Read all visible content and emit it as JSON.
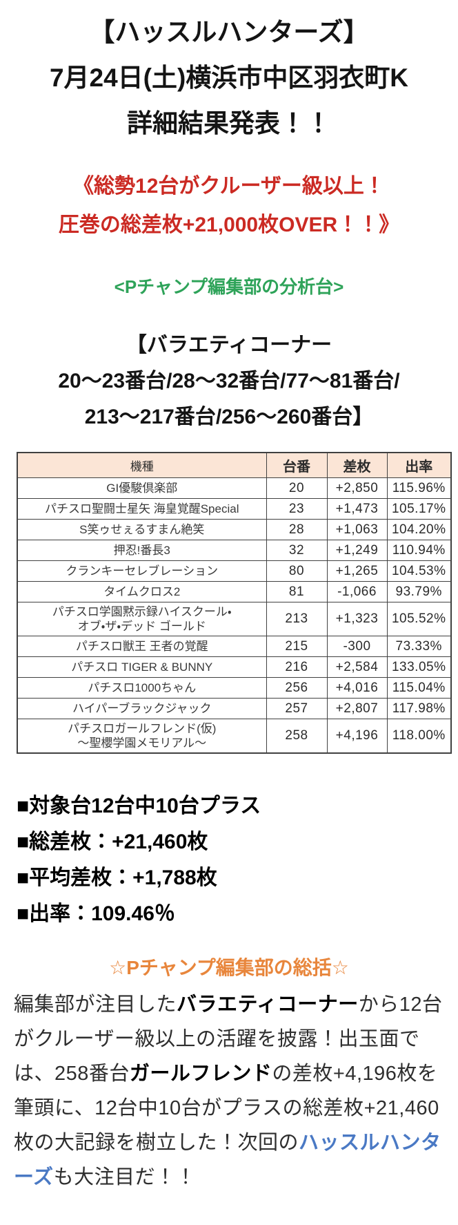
{
  "theme": {
    "red": "#cb2a23",
    "green": "#2ea359",
    "orange": "#e8863c",
    "blue": "#4a79c4",
    "header_bg": "#fbe5d6",
    "border": "#404040"
  },
  "title": {
    "lines": [
      "【ハッスルハンターズ】",
      "7月24日(土)横浜市中区羽衣町K",
      "詳細結果発表！！"
    ]
  },
  "highlight": {
    "lines": [
      "《総勢12台がクルーザー級以上！",
      "圧巻の総差枚+21,000枚OVER！！》"
    ]
  },
  "analysis_tag": {
    "text": "<Pチャンプ編集部の分析台>"
  },
  "corner_heading": {
    "lines": [
      "【バラエティコーナー",
      "20〜23番台/28〜32番台/77〜81番台/",
      "213〜217番台/256〜260番台】"
    ]
  },
  "results_table": {
    "columns": {
      "machine": "機種",
      "unit": "台番",
      "diff": "差枚",
      "rate": "出率"
    },
    "rows": [
      {
        "machine": "GI優駿倶楽部",
        "unit": "20",
        "diff": "+2,850",
        "rate": "115.96%"
      },
      {
        "machine": "パチスロ聖闘士星矢 海皇覚醒Special",
        "unit": "23",
        "diff": "+1,473",
        "rate": "105.17%"
      },
      {
        "machine": "S笑ゥせぇるすまん絶笑",
        "unit": "28",
        "diff": "+1,063",
        "rate": "104.20%"
      },
      {
        "machine": "押忍!番長3",
        "unit": "32",
        "diff": "+1,249",
        "rate": "110.94%"
      },
      {
        "machine": "クランキーセレブレーション",
        "unit": "80",
        "diff": "+1,265",
        "rate": "104.53%"
      },
      {
        "machine": "タイムクロス2",
        "unit": "81",
        "diff": "-1,066",
        "rate": "93.79%"
      },
      {
        "machine": "パチスロ学園黙示録ハイスクール・\nオブ・ザ・デッド ゴールド",
        "unit": "213",
        "diff": "+1,323",
        "rate": "105.52%"
      },
      {
        "machine": "パチスロ獣王 王者の覚醒",
        "unit": "215",
        "diff": "-300",
        "rate": "73.33%"
      },
      {
        "machine": "パチスロ TIGER & BUNNY",
        "unit": "216",
        "diff": "+2,584",
        "rate": "133.05%"
      },
      {
        "machine": "パチスロ1000ちゃん",
        "unit": "256",
        "diff": "+4,016",
        "rate": "115.04%"
      },
      {
        "machine": "ハイパーブラックジャック",
        "unit": "257",
        "diff": "+2,807",
        "rate": "117.98%"
      },
      {
        "machine": "パチスロガールフレンド(仮)\n〜聖櫻学園メモリアル〜",
        "unit": "258",
        "diff": "+4,196",
        "rate": "118.00%"
      }
    ]
  },
  "stats": {
    "items": [
      "■対象台12台中10台プラス",
      "■総差枚：+21,460枚",
      "■平均差枚：+1,788枚",
      "■出率：109.46％"
    ]
  },
  "summary": {
    "heading": "☆Pチャンプ編集部の総括☆",
    "segments": [
      {
        "text": "編集部が注目した"
      },
      {
        "text": "バラエティコーナー"
      },
      {
        "text": "から12台がクルーザー級以上の活躍を披露！出玉面では、258番台"
      },
      {
        "text": "ガールフレンド"
      },
      {
        "text": "の差枚+4,196枚を筆頭に、12台中10台がプラスの総差枚+21,460枚の大記録を樹立した！次回の"
      },
      {
        "text": "ハッスルハンターズ"
      },
      {
        "text": "も大注目だ！！"
      }
    ]
  }
}
